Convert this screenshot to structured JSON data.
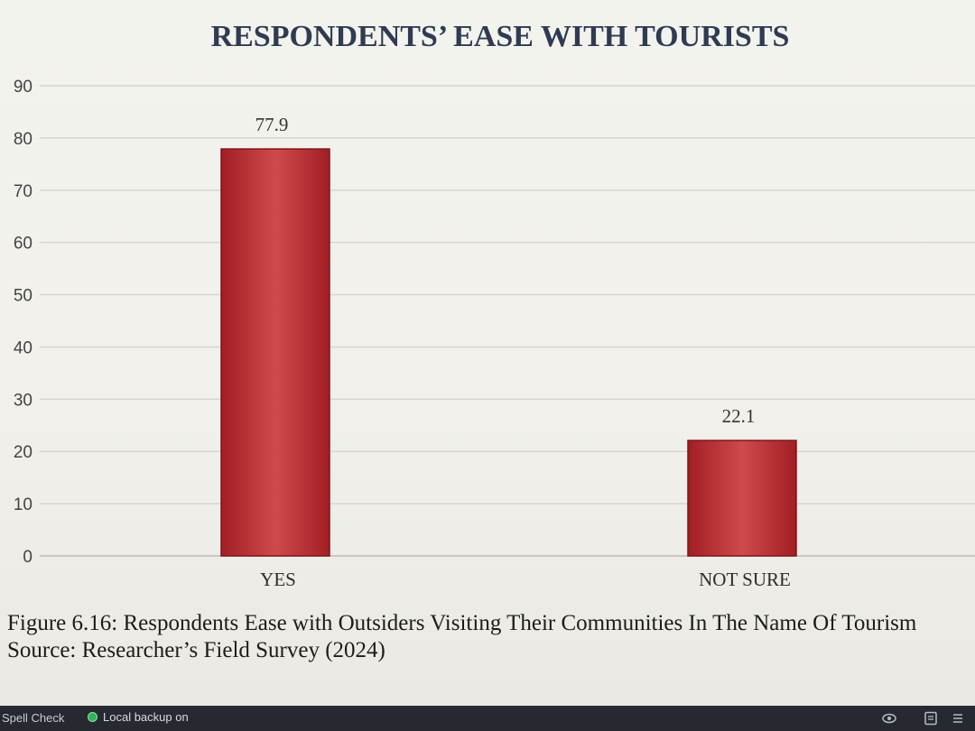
{
  "chart_data": {
    "type": "bar",
    "title": "RESPONDENTS’ EASE WITH TOURISTS",
    "categories": [
      "YES",
      "NOT SURE"
    ],
    "values": [
      77.9,
      22.1
    ],
    "data_labels": [
      "77.9",
      "22.1"
    ],
    "ylim": [
      0,
      90
    ],
    "yticks": [
      "0",
      "10",
      "20",
      "30",
      "40",
      "50",
      "60",
      "70",
      "80",
      "90"
    ],
    "grid": true,
    "legend": "none",
    "bar_color": "#b52a2e"
  },
  "caption": {
    "figure": "Figure 6.16: Respondents Ease with Outsiders Visiting Their Communities In The Name Of Tourism",
    "source": "Source: Researcher’s Field Survey (2024)"
  },
  "status_bar": {
    "spell_check": "Spell Check",
    "backup": "Local backup on",
    "icons": [
      "eye-icon",
      "notes-icon",
      "list-icon"
    ]
  }
}
